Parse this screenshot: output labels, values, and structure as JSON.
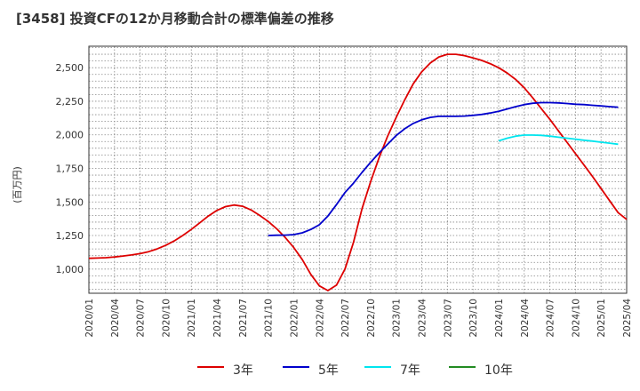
{
  "title": "[3458]  投資CFの12か月移動合計の標準偏差の推移",
  "chart_data": {
    "type": "line",
    "title": "[3458]  投資CFの12か月移動合計の標準偏差の推移",
    "ylabel": "(百万円)",
    "xlabel": "",
    "ylim": [
      820,
      2660
    ],
    "y_ticks": [
      "1,000",
      "1,250",
      "1,500",
      "1,750",
      "2,000",
      "2,250",
      "2,500"
    ],
    "y_tick_values": [
      1000,
      1250,
      1500,
      1750,
      2000,
      2250,
      2500
    ],
    "x_ticks": [
      "2020/01",
      "2020/04",
      "2020/07",
      "2020/10",
      "2021/01",
      "2021/04",
      "2021/07",
      "2021/10",
      "2022/01",
      "2022/04",
      "2022/07",
      "2022/10",
      "2023/01",
      "2023/04",
      "2023/07",
      "2023/10",
      "2024/01",
      "2024/04",
      "2024/07",
      "2024/10",
      "2025/01",
      "2025/04"
    ],
    "x_start": "2020/01",
    "x_end": "2025/04",
    "grid": true,
    "legend_position": "bottom",
    "series": [
      {
        "name": "3年",
        "color": "#dd0000",
        "start": "2020/01",
        "values": [
          1080,
          1082,
          1085,
          1090,
          1097,
          1105,
          1115,
          1130,
          1150,
          1177,
          1210,
          1250,
          1295,
          1345,
          1395,
          1437,
          1465,
          1477,
          1468,
          1440,
          1400,
          1355,
          1300,
          1235,
          1160,
          1070,
          960,
          875,
          840,
          880,
          1000,
          1200,
          1450,
          1650,
          1830,
          1990,
          2130,
          2260,
          2380,
          2470,
          2535,
          2580,
          2600,
          2600,
          2590,
          2573,
          2555,
          2530,
          2500,
          2460,
          2412,
          2350,
          2275,
          2195,
          2115,
          2030,
          1945,
          1860,
          1775,
          1690,
          1600,
          1510,
          1420,
          1370
        ]
      },
      {
        "name": "5年",
        "color": "#0000cc",
        "start": "2021/10",
        "values": [
          1250,
          1252,
          1253,
          1257,
          1270,
          1295,
          1330,
          1395,
          1480,
          1570,
          1640,
          1720,
          1795,
          1865,
          1930,
          1995,
          2045,
          2085,
          2112,
          2130,
          2138,
          2138,
          2138,
          2140,
          2145,
          2152,
          2162,
          2175,
          2193,
          2210,
          2225,
          2235,
          2240,
          2240,
          2238,
          2233,
          2228,
          2225,
          2220,
          2215,
          2210,
          2205
        ]
      },
      {
        "name": "7年",
        "color": "#00e5ee",
        "start": "2024/01",
        "values": [
          1955,
          1975,
          1990,
          1998,
          1998,
          1996,
          1990,
          1982,
          1975,
          1968,
          1960,
          1953,
          1945,
          1938,
          1930
        ]
      },
      {
        "name": "10年",
        "color": "#228b22",
        "start": "2024/01",
        "values": []
      }
    ]
  }
}
